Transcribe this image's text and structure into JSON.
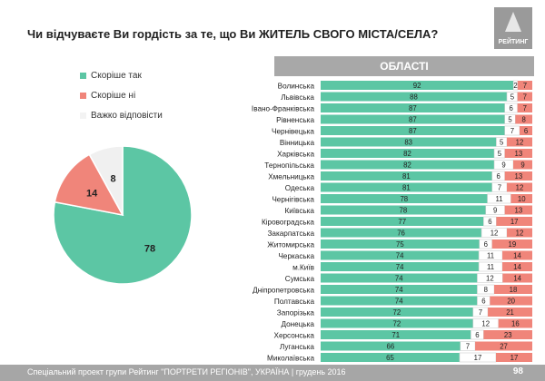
{
  "title": "Чи відчуваєте Ви гордість за те, що Ви ЖИТЕЛЬ СВОГО МІСТА/СЕЛА?",
  "logo_text": "РЕЙТИНГ",
  "regions_header": "ОБЛАСТІ",
  "footer_text": "Спеціальний проект групи Рейтинг \"ПОРТРЕТИ РЕГІОНІВ\", УКРАЇНА | грудень 2016",
  "page_number": "98",
  "colors": {
    "yes": "#5cc6a4",
    "no": "#f0857a",
    "hard": "#f0f0f0",
    "gray": "#a8a8a8"
  },
  "chart_data": [
    {
      "type": "pie",
      "series": [
        {
          "name": "Скоріше так",
          "value": 78,
          "color": "#5cc6a4"
        },
        {
          "name": "Скоріше ні",
          "value": 14,
          "color": "#f0857a"
        },
        {
          "name": "Важко відповісти",
          "value": 8,
          "color": "#f0f0f0"
        }
      ]
    },
    {
      "type": "bar",
      "stacked": true,
      "orientation": "horizontal",
      "categories": [
        "Волинська",
        "Львівська",
        "Івано-Франківська",
        "Рівненська",
        "Чернівецька",
        "Вінницька",
        "Харківська",
        "Тернопільська",
        "Хмельницька",
        "Одеська",
        "Чернігівська",
        "Київська",
        "Кіровоградська",
        "Закарпатська",
        "Житомирська",
        "Черкаська",
        "м.Київ",
        "Сумська",
        "Дніпропетровська",
        "Полтавська",
        "Запорізька",
        "Донецька",
        "Херсонська",
        "Луганська",
        "Миколаївська"
      ],
      "series": [
        {
          "values": [
            92,
            88,
            87,
            87,
            87,
            83,
            82,
            82,
            81,
            81,
            78,
            78,
            77,
            76,
            75,
            74,
            74,
            74,
            74,
            74,
            72,
            72,
            71,
            66,
            65
          ]
        },
        {
          "values": [
            2,
            5,
            6,
            5,
            7,
            5,
            5,
            9,
            6,
            7,
            11,
            9,
            6,
            12,
            6,
            11,
            11,
            12,
            8,
            6,
            7,
            12,
            6,
            7,
            17
          ]
        },
        {
          "values": [
            7,
            7,
            7,
            8,
            6,
            12,
            13,
            9,
            13,
            12,
            10,
            13,
            17,
            12,
            19,
            14,
            14,
            14,
            18,
            20,
            21,
            16,
            23,
            27,
            17
          ]
        }
      ]
    }
  ]
}
